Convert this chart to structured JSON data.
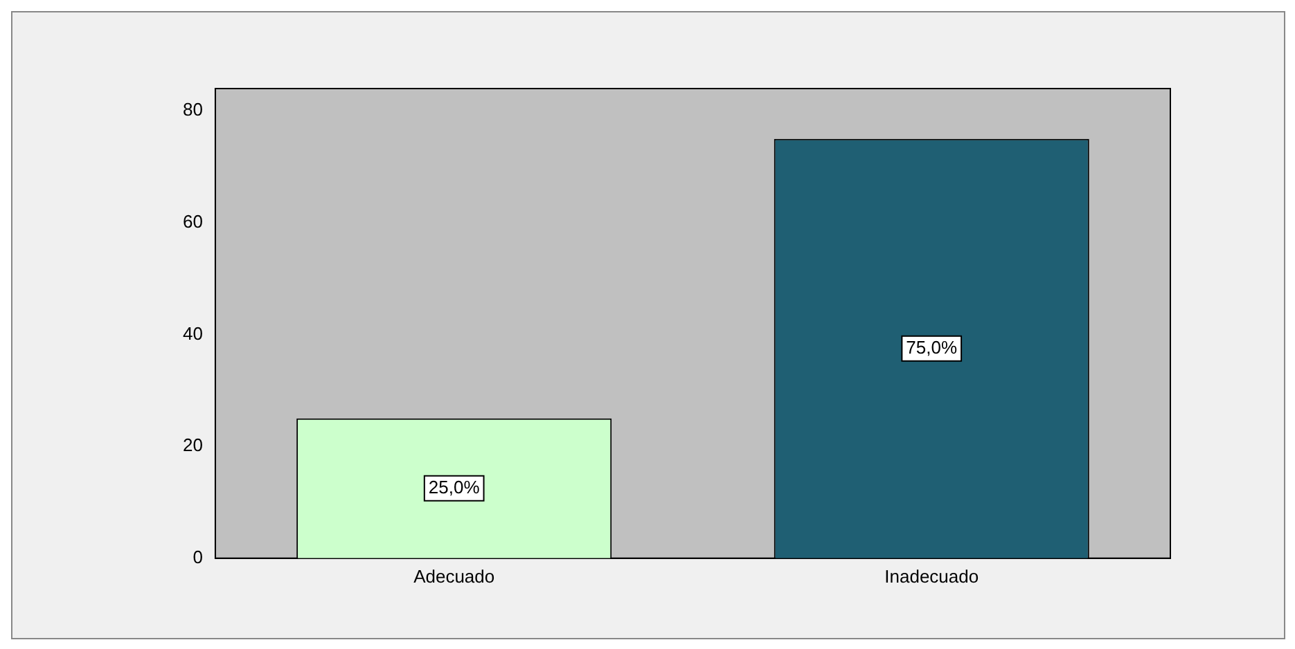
{
  "chart_data": {
    "type": "bar",
    "categories": [
      "Adecuado",
      "Inadecuado"
    ],
    "series": [
      {
        "colors": [
          "#ccffcc",
          "#1f5f73"
        ],
        "values": [
          25,
          75
        ]
      }
    ],
    "value_labels": [
      "25,0%",
      "75,0%"
    ],
    "ylim": [
      0,
      84
    ],
    "yticks": [
      0,
      20,
      40,
      60,
      80
    ],
    "grid": false,
    "legend": false
  }
}
